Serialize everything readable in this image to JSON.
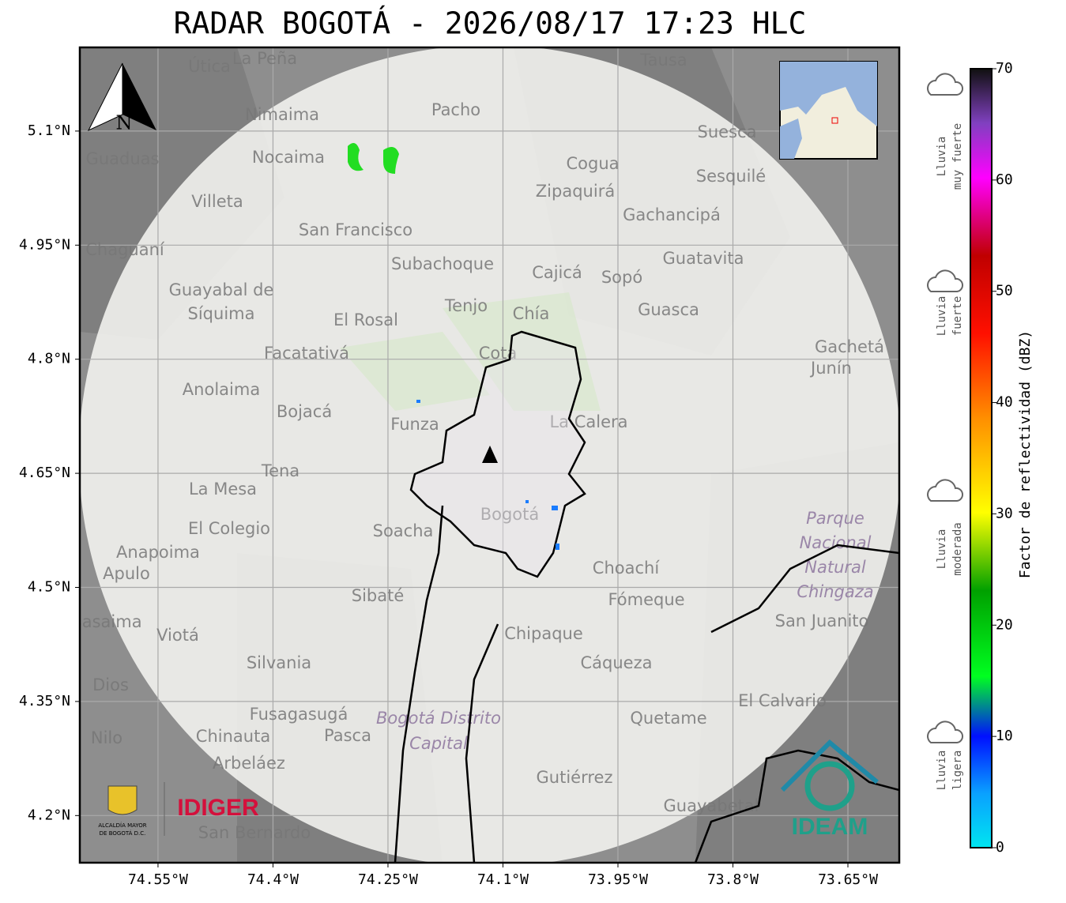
{
  "header": {
    "title": "RADAR BOGOTÁ - 2026/08/17 17:23 HLC"
  },
  "map": {
    "lon_range": [
      -74.652,
      -73.583
    ],
    "lat_range": [
      4.138,
      5.21
    ],
    "lon_ticks": [
      {
        "value": -74.55,
        "label": "74.55°W"
      },
      {
        "value": -74.4,
        "label": "74.4°W"
      },
      {
        "value": -74.25,
        "label": "74.25°W"
      },
      {
        "value": -74.1,
        "label": "74.1°W"
      },
      {
        "value": -73.95,
        "label": "73.95°W"
      },
      {
        "value": -73.8,
        "label": "73.8°W"
      },
      {
        "value": -73.65,
        "label": "73.65°W"
      }
    ],
    "lat_ticks": [
      {
        "value": 5.1,
        "label": "5.1°N"
      },
      {
        "value": 4.95,
        "label": "4.95°N"
      },
      {
        "value": 4.8,
        "label": "4.8°N"
      },
      {
        "value": 4.65,
        "label": "4.65°N"
      },
      {
        "value": 4.5,
        "label": "4.5°N"
      },
      {
        "value": 4.35,
        "label": "4.35°N"
      },
      {
        "value": 4.2,
        "label": "4.2°N"
      }
    ],
    "north_label": "N",
    "places": [
      "La Peña",
      "Útica",
      "Tausa",
      "Pacho",
      "Nimaima",
      "Nocaima",
      "Guaduas",
      "Suesca",
      "Sesquilé",
      "Cogua",
      "Zipaquirá",
      "Villeta",
      "Gachancipá",
      "San Francisco",
      "Chaguaní",
      "Guatavita",
      "Subachoque",
      "Cajicá",
      "Sopó",
      "Guayabal de",
      "Síquima",
      "Tenjo",
      "Chía",
      "Guasca",
      "El Rosal",
      "Facatativá",
      "Cota",
      "Gachetá",
      "Junín",
      "Anolaima",
      "Bojacá",
      "Funza",
      "La Calera",
      "Tena",
      "La Mesa",
      "Bogotá",
      "Soacha",
      "El Colegio",
      "Anapoima",
      "Apulo",
      "Choachí",
      "Sibaté",
      "Fómeque",
      "San Juanito",
      "Chipaque",
      "Viotá",
      "Silvania",
      "Cáqueza",
      "El Calvario",
      "Fusagasugá",
      "Quetame",
      "Chinauta",
      "Pasca",
      "Arbeláez",
      "Gutiérrez",
      "Guayabetal",
      "San Bernardo",
      "Nilo",
      "Sasaima",
      "Dios"
    ],
    "areas": [
      [
        "Parque",
        "Nacional",
        "Natural",
        "Chingaza"
      ],
      [
        "Bogotá Distrito",
        "Capital"
      ]
    ]
  },
  "colorbar": {
    "label": "Factor de reflectividad (dBZ)",
    "range": [
      0,
      70
    ],
    "ticks": [
      0,
      10,
      20,
      30,
      40,
      50,
      60,
      70
    ],
    "categories": [
      [
        "Lluvia",
        "ligera"
      ],
      [
        "Lluvia",
        "moderada"
      ],
      [
        "Lluvia",
        "fuerte"
      ],
      [
        "Lluvia",
        "muy fuerte"
      ]
    ]
  },
  "logos": {
    "alcaldia": [
      "ALCALDÍA MAYOR",
      "DE BOGOTÁ D.C."
    ],
    "idiger": "IDIGER",
    "ideam": "IDEAM"
  }
}
